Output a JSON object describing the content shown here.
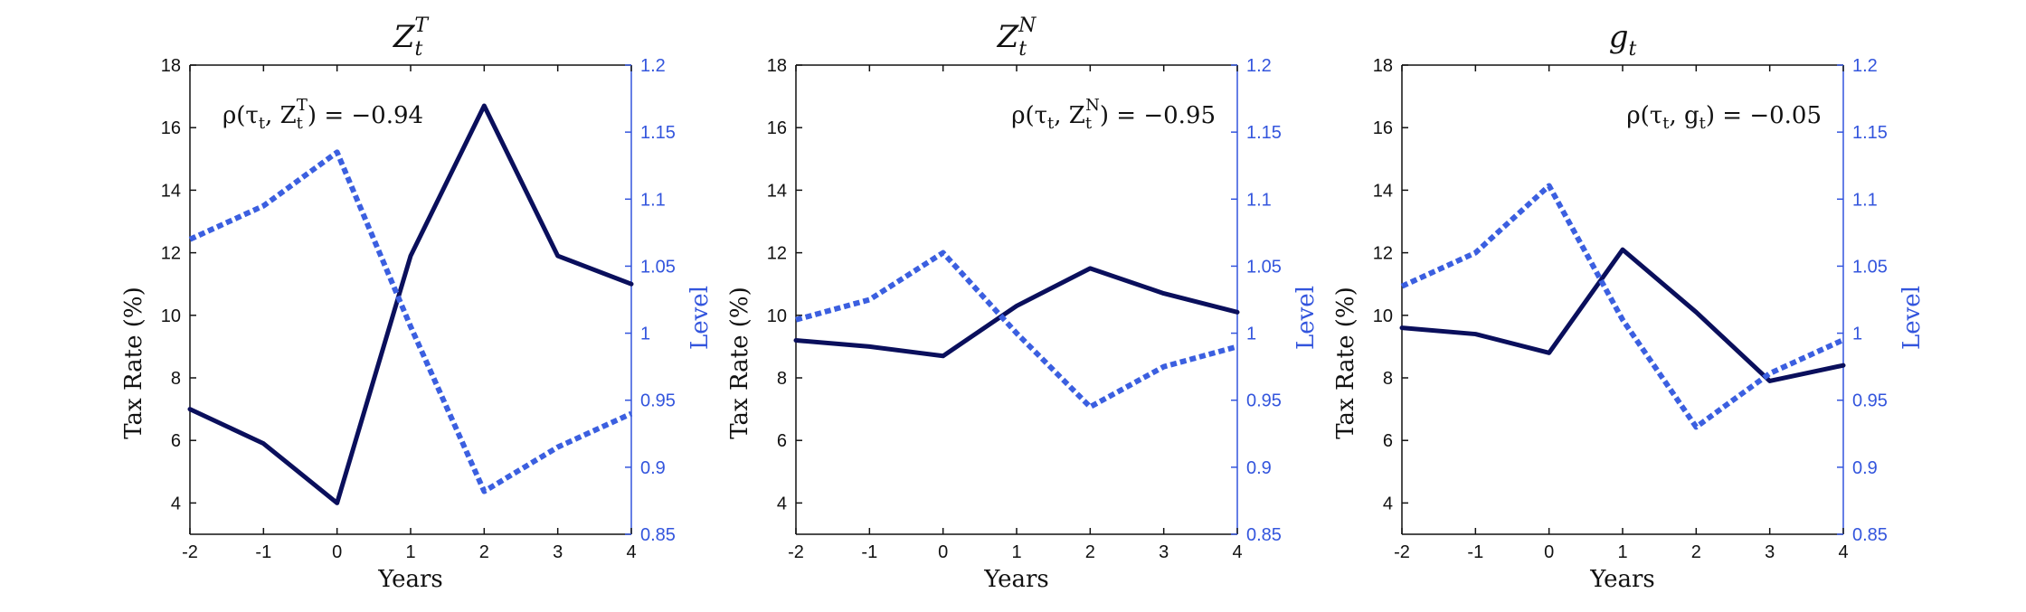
{
  "chart_data": [
    {
      "type": "line",
      "title": "Z_t^T",
      "title_main": "Z",
      "title_sub": "t",
      "title_sup": "T",
      "xlabel": "Years",
      "ylabel": "Tax Rate (%)",
      "ylabel_right": "Level",
      "annotation": {
        "text": "ρ(τt, Z_t^T) = −0.94",
        "prefix": "ρ(τ",
        "sub1": "t",
        "mid": ", Z",
        "sub2": "t",
        "sup2": "T",
        "suffix": ") = −0.94",
        "placement": "top-left"
      },
      "x": [
        -2,
        -1,
        0,
        1,
        2,
        3,
        4
      ],
      "xlim": [
        -2,
        4
      ],
      "xticks": [
        "-2",
        "-1",
        "0",
        "1",
        "2",
        "3",
        "4"
      ],
      "ylim": [
        3,
        18
      ],
      "yticks": [
        "4",
        "6",
        "8",
        "10",
        "12",
        "14",
        "16",
        "18"
      ],
      "ylim_right": [
        0.85,
        1.2
      ],
      "yticks_right": [
        "0.85",
        "0.9",
        "0.95",
        "1",
        "1.05",
        "1.1",
        "1.15",
        "1.2"
      ],
      "series": [
        {
          "axis": "left",
          "style": "solid",
          "color": "#0a0f5c",
          "values": [
            7.0,
            5.9,
            4.0,
            11.9,
            16.7,
            11.9,
            11.0
          ]
        },
        {
          "axis": "right",
          "style": "dotted",
          "color": "#3b5fe0",
          "values": [
            1.07,
            1.095,
            1.135,
            1.005,
            0.882,
            0.915,
            0.94
          ]
        }
      ]
    },
    {
      "type": "line",
      "title": "Z_t^N",
      "title_main": "Z",
      "title_sub": "t",
      "title_sup": "N",
      "xlabel": "Years",
      "ylabel": "Tax Rate (%)",
      "ylabel_right": "Level",
      "annotation": {
        "text": "ρ(τt, Z_t^N) = −0.95",
        "prefix": "ρ(τ",
        "sub1": "t",
        "mid": ", Z",
        "sub2": "t",
        "sup2": "N",
        "suffix": ") = −0.95",
        "placement": "top-right"
      },
      "x": [
        -2,
        -1,
        0,
        1,
        2,
        3,
        4
      ],
      "xlim": [
        -2,
        4
      ],
      "xticks": [
        "-2",
        "-1",
        "0",
        "1",
        "2",
        "3",
        "4"
      ],
      "ylim": [
        3,
        18
      ],
      "yticks": [
        "4",
        "6",
        "8",
        "10",
        "12",
        "14",
        "16",
        "18"
      ],
      "ylim_right": [
        0.85,
        1.2
      ],
      "yticks_right": [
        "0.85",
        "0.9",
        "0.95",
        "1",
        "1.05",
        "1.1",
        "1.15",
        "1.2"
      ],
      "series": [
        {
          "axis": "left",
          "style": "solid",
          "color": "#0a0f5c",
          "values": [
            9.2,
            9.0,
            8.7,
            10.3,
            11.5,
            10.7,
            10.1
          ]
        },
        {
          "axis": "right",
          "style": "dotted",
          "color": "#3b5fe0",
          "values": [
            1.01,
            1.025,
            1.06,
            1.0,
            0.945,
            0.975,
            0.99
          ]
        }
      ]
    },
    {
      "type": "line",
      "title": "g_t",
      "title_main": "g",
      "title_sub": "t",
      "title_sup": "",
      "xlabel": "Years",
      "ylabel": "Tax Rate (%)",
      "ylabel_right": "Level",
      "annotation": {
        "text": "ρ(τt, gt) = −0.05",
        "prefix": "ρ(τ",
        "sub1": "t",
        "mid": ", g",
        "sub2": "t",
        "sup2": "",
        "suffix": ") = −0.05",
        "placement": "top-right"
      },
      "x": [
        -2,
        -1,
        0,
        1,
        2,
        3,
        4
      ],
      "xlim": [
        -2,
        4
      ],
      "xticks": [
        "-2",
        "-1",
        "0",
        "1",
        "2",
        "3",
        "4"
      ],
      "ylim": [
        3,
        18
      ],
      "yticks": [
        "4",
        "6",
        "8",
        "10",
        "12",
        "14",
        "16",
        "18"
      ],
      "ylim_right": [
        0.85,
        1.2
      ],
      "yticks_right": [
        "0.85",
        "0.9",
        "0.95",
        "1",
        "1.05",
        "1.1",
        "1.15",
        "1.2"
      ],
      "series": [
        {
          "axis": "left",
          "style": "solid",
          "color": "#0a0f5c",
          "values": [
            9.6,
            9.4,
            8.8,
            12.1,
            10.1,
            7.9,
            8.4
          ]
        },
        {
          "axis": "right",
          "style": "dotted",
          "color": "#3b5fe0",
          "values": [
            1.035,
            1.06,
            1.11,
            1.01,
            0.93,
            0.97,
            0.995
          ]
        }
      ]
    }
  ]
}
